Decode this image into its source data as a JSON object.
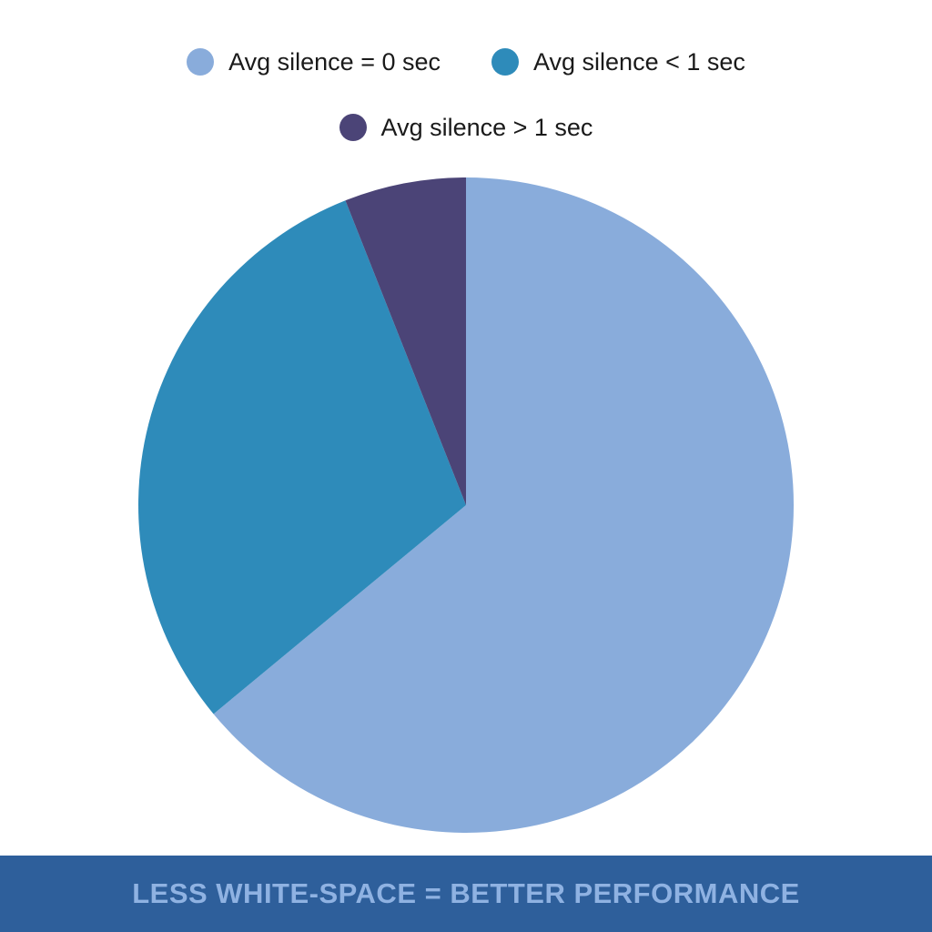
{
  "chart_data": {
    "type": "pie",
    "title": "",
    "legend_position": "top",
    "slices": [
      {
        "label": "Avg silence = 0 sec",
        "value": 64,
        "color": "#89acdb"
      },
      {
        "label": "Avg silence < 1 sec",
        "value": 30,
        "color": "#2e8bba"
      },
      {
        "label": "Avg silence > 1 sec",
        "value": 6,
        "color": "#4b4477"
      }
    ]
  },
  "footer": {
    "text": "LESS WHITE-SPACE = BETTER PERFORMANCE",
    "background_color": "#2e5f9b",
    "text_color": "#8fb2e2"
  }
}
